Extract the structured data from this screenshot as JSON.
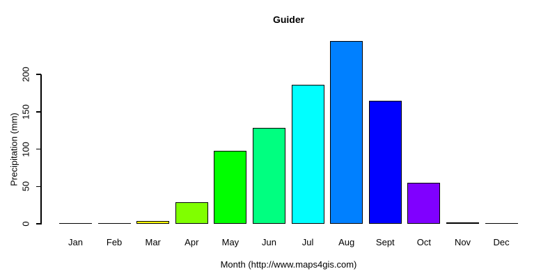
{
  "chart_data": {
    "type": "bar",
    "title": "Guider",
    "xlabel": "Month (http://www.maps4gis.com)",
    "ylabel": "Precipitation (mm)",
    "categories": [
      "Jan",
      "Feb",
      "Mar",
      "Apr",
      "May",
      "Jun",
      "Jul",
      "Aug",
      "Sept",
      "Oct",
      "Nov",
      "Dec"
    ],
    "values": [
      0,
      0,
      4,
      29,
      98,
      128,
      186,
      245,
      165,
      55,
      2,
      0
    ],
    "bar_colors": [
      "#FF0000",
      "#FF8000",
      "#FFFF00",
      "#80FF00",
      "#00FF00",
      "#00FF80",
      "#00FFFF",
      "#0080FF",
      "#0000FF",
      "#8000FF",
      "#FF00FF",
      "#FF0080"
    ],
    "yticks": [
      0,
      50,
      100,
      150,
      200
    ],
    "ylim": [
      0,
      200
    ],
    "grid": false,
    "legend": "none",
    "axis_color": "#000000",
    "bar_border_color": "#000000",
    "background_color": "#ffffff"
  }
}
